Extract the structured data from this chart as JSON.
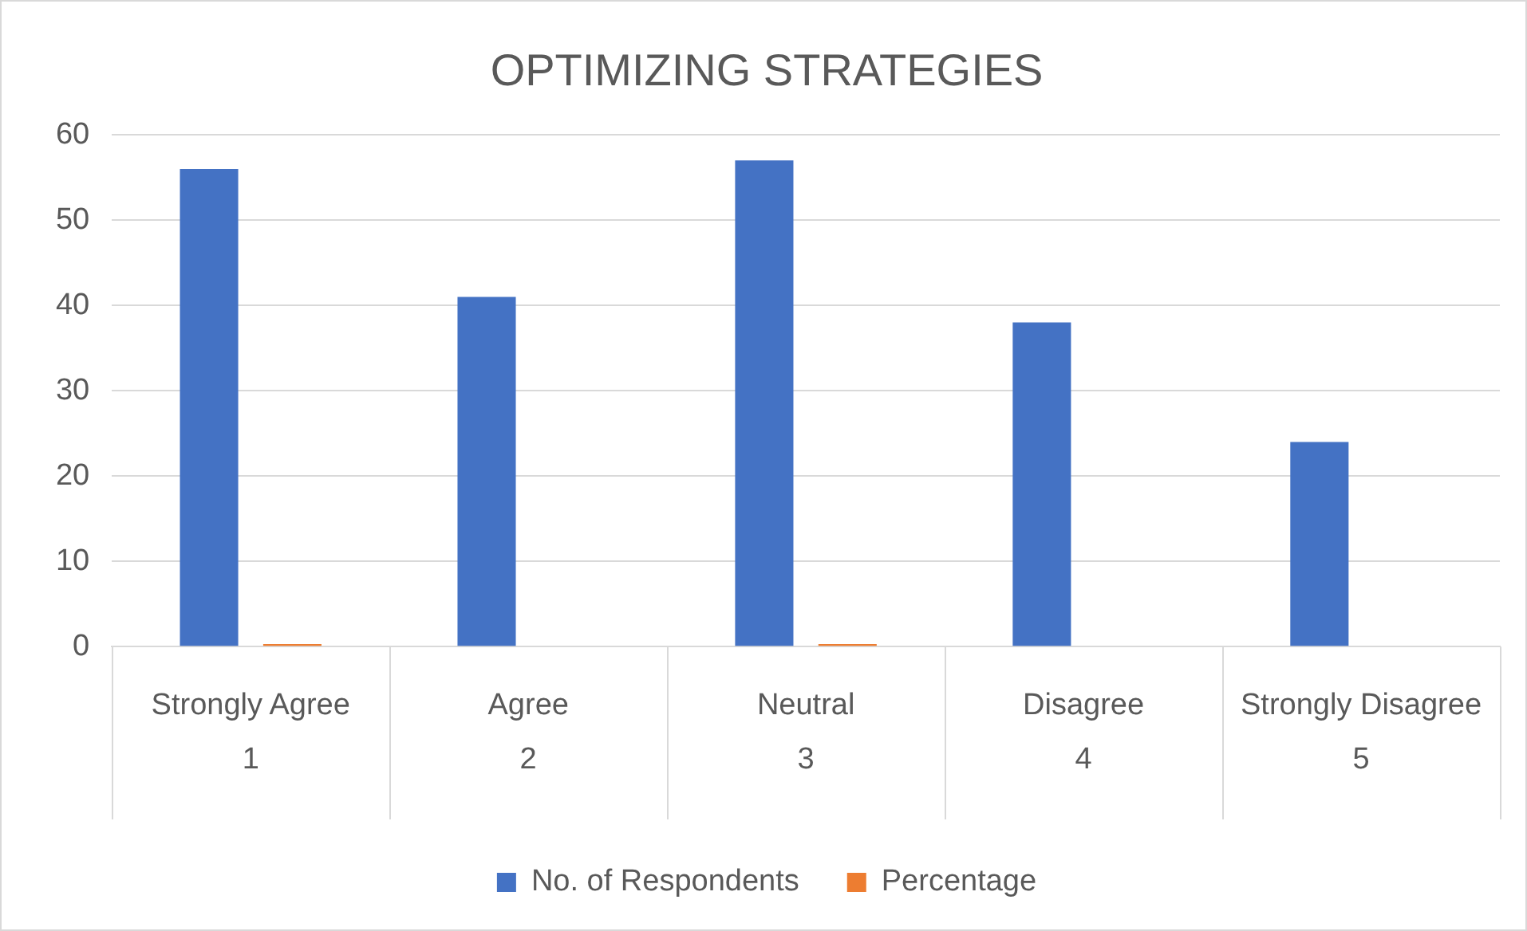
{
  "chart_data": {
    "type": "bar",
    "title": "OPTIMIZING STRATEGIES",
    "categories": [
      "Strongly Agree\n1",
      "Agree\n2",
      "Neutral\n3",
      "Disagree\n4",
      "Strongly Disagree\n5"
    ],
    "series": [
      {
        "name": "No. of Respondents",
        "color": "#4472c4",
        "values": [
          56,
          41,
          57,
          38,
          24
        ]
      },
      {
        "name": "Percentage",
        "color": "#ed7d31",
        "values": [
          0.3,
          null,
          0.3,
          null,
          null
        ]
      }
    ],
    "ylim": [
      0,
      60
    ],
    "yticks": [
      0,
      10,
      20,
      30,
      40,
      50,
      60
    ],
    "grid": "y",
    "legend": "bottom"
  }
}
